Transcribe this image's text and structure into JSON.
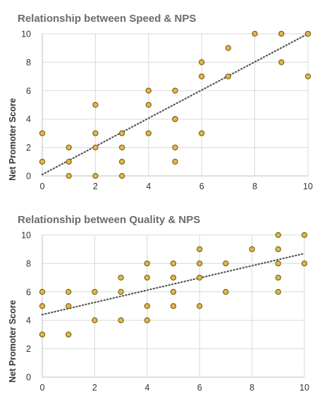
{
  "chart_data": [
    {
      "type": "scatter",
      "title": "Relationship between Speed & NPS",
      "xlabel": "",
      "ylabel": "Net Promoter Score",
      "xlim": [
        0,
        10
      ],
      "ylim": [
        0,
        10
      ],
      "xticks": [
        0,
        2,
        4,
        6,
        8,
        10
      ],
      "yticks": [
        0,
        2,
        4,
        6,
        8,
        10
      ],
      "grid": true,
      "marker_fill": "#e0b84a",
      "marker_edge": "#7a5a10",
      "trendline": {
        "type": "linear",
        "color": "#555555",
        "style": "dotted",
        "slope": 0.99,
        "intercept": 0.1
      },
      "points": [
        {
          "x": 0,
          "y": 3
        },
        {
          "x": 0,
          "y": 1
        },
        {
          "x": 1,
          "y": 2
        },
        {
          "x": 1,
          "y": 1
        },
        {
          "x": 1,
          "y": 0
        },
        {
          "x": 2,
          "y": 5
        },
        {
          "x": 2,
          "y": 3
        },
        {
          "x": 2,
          "y": 2
        },
        {
          "x": 2,
          "y": 0
        },
        {
          "x": 3,
          "y": 3
        },
        {
          "x": 3,
          "y": 2
        },
        {
          "x": 3,
          "y": 1
        },
        {
          "x": 3,
          "y": 0
        },
        {
          "x": 4,
          "y": 6
        },
        {
          "x": 4,
          "y": 5
        },
        {
          "x": 4,
          "y": 3
        },
        {
          "x": 5,
          "y": 6
        },
        {
          "x": 5,
          "y": 4
        },
        {
          "x": 5,
          "y": 4
        },
        {
          "x": 5,
          "y": 2
        },
        {
          "x": 5,
          "y": 1
        },
        {
          "x": 6,
          "y": 8
        },
        {
          "x": 6,
          "y": 7
        },
        {
          "x": 6,
          "y": 3
        },
        {
          "x": 7,
          "y": 9
        },
        {
          "x": 7,
          "y": 7
        },
        {
          "x": 8,
          "y": 10
        },
        {
          "x": 9,
          "y": 10
        },
        {
          "x": 9,
          "y": 10
        },
        {
          "x": 9,
          "y": 8
        },
        {
          "x": 10,
          "y": 10
        },
        {
          "x": 10,
          "y": 10
        },
        {
          "x": 10,
          "y": 7
        }
      ]
    },
    {
      "type": "scatter",
      "title": "Relationship between Quality & NPS",
      "xlabel": "",
      "ylabel": "Net Promoter Score",
      "xlim": [
        0,
        10
      ],
      "ylim": [
        0,
        10
      ],
      "xticks": [
        0,
        2,
        4,
        6,
        8,
        10
      ],
      "yticks": [
        0,
        2,
        4,
        6,
        8,
        10
      ],
      "grid": true,
      "marker_fill": "#e0b84a",
      "marker_edge": "#7a5a10",
      "trendline": {
        "type": "linear",
        "color": "#555555",
        "style": "dotted",
        "slope": 0.43,
        "intercept": 4.4
      },
      "points": [
        {
          "x": 0,
          "y": 6
        },
        {
          "x": 0,
          "y": 5
        },
        {
          "x": 0,
          "y": 3
        },
        {
          "x": 1,
          "y": 6
        },
        {
          "x": 1,
          "y": 5
        },
        {
          "x": 1,
          "y": 3
        },
        {
          "x": 2,
          "y": 6
        },
        {
          "x": 2,
          "y": 4
        },
        {
          "x": 3,
          "y": 7
        },
        {
          "x": 3,
          "y": 6
        },
        {
          "x": 3,
          "y": 4
        },
        {
          "x": 4,
          "y": 8
        },
        {
          "x": 4,
          "y": 7
        },
        {
          "x": 4,
          "y": 5
        },
        {
          "x": 4,
          "y": 4
        },
        {
          "x": 5,
          "y": 8
        },
        {
          "x": 5,
          "y": 7
        },
        {
          "x": 5,
          "y": 6
        },
        {
          "x": 5,
          "y": 5
        },
        {
          "x": 6,
          "y": 9
        },
        {
          "x": 6,
          "y": 8
        },
        {
          "x": 6,
          "y": 7
        },
        {
          "x": 6,
          "y": 5
        },
        {
          "x": 7,
          "y": 8
        },
        {
          "x": 7,
          "y": 6
        },
        {
          "x": 8,
          "y": 9
        },
        {
          "x": 9,
          "y": 10
        },
        {
          "x": 9,
          "y": 9
        },
        {
          "x": 9,
          "y": 8
        },
        {
          "x": 9,
          "y": 7
        },
        {
          "x": 9,
          "y": 6
        },
        {
          "x": 10,
          "y": 10
        },
        {
          "x": 10,
          "y": 8
        }
      ]
    }
  ]
}
